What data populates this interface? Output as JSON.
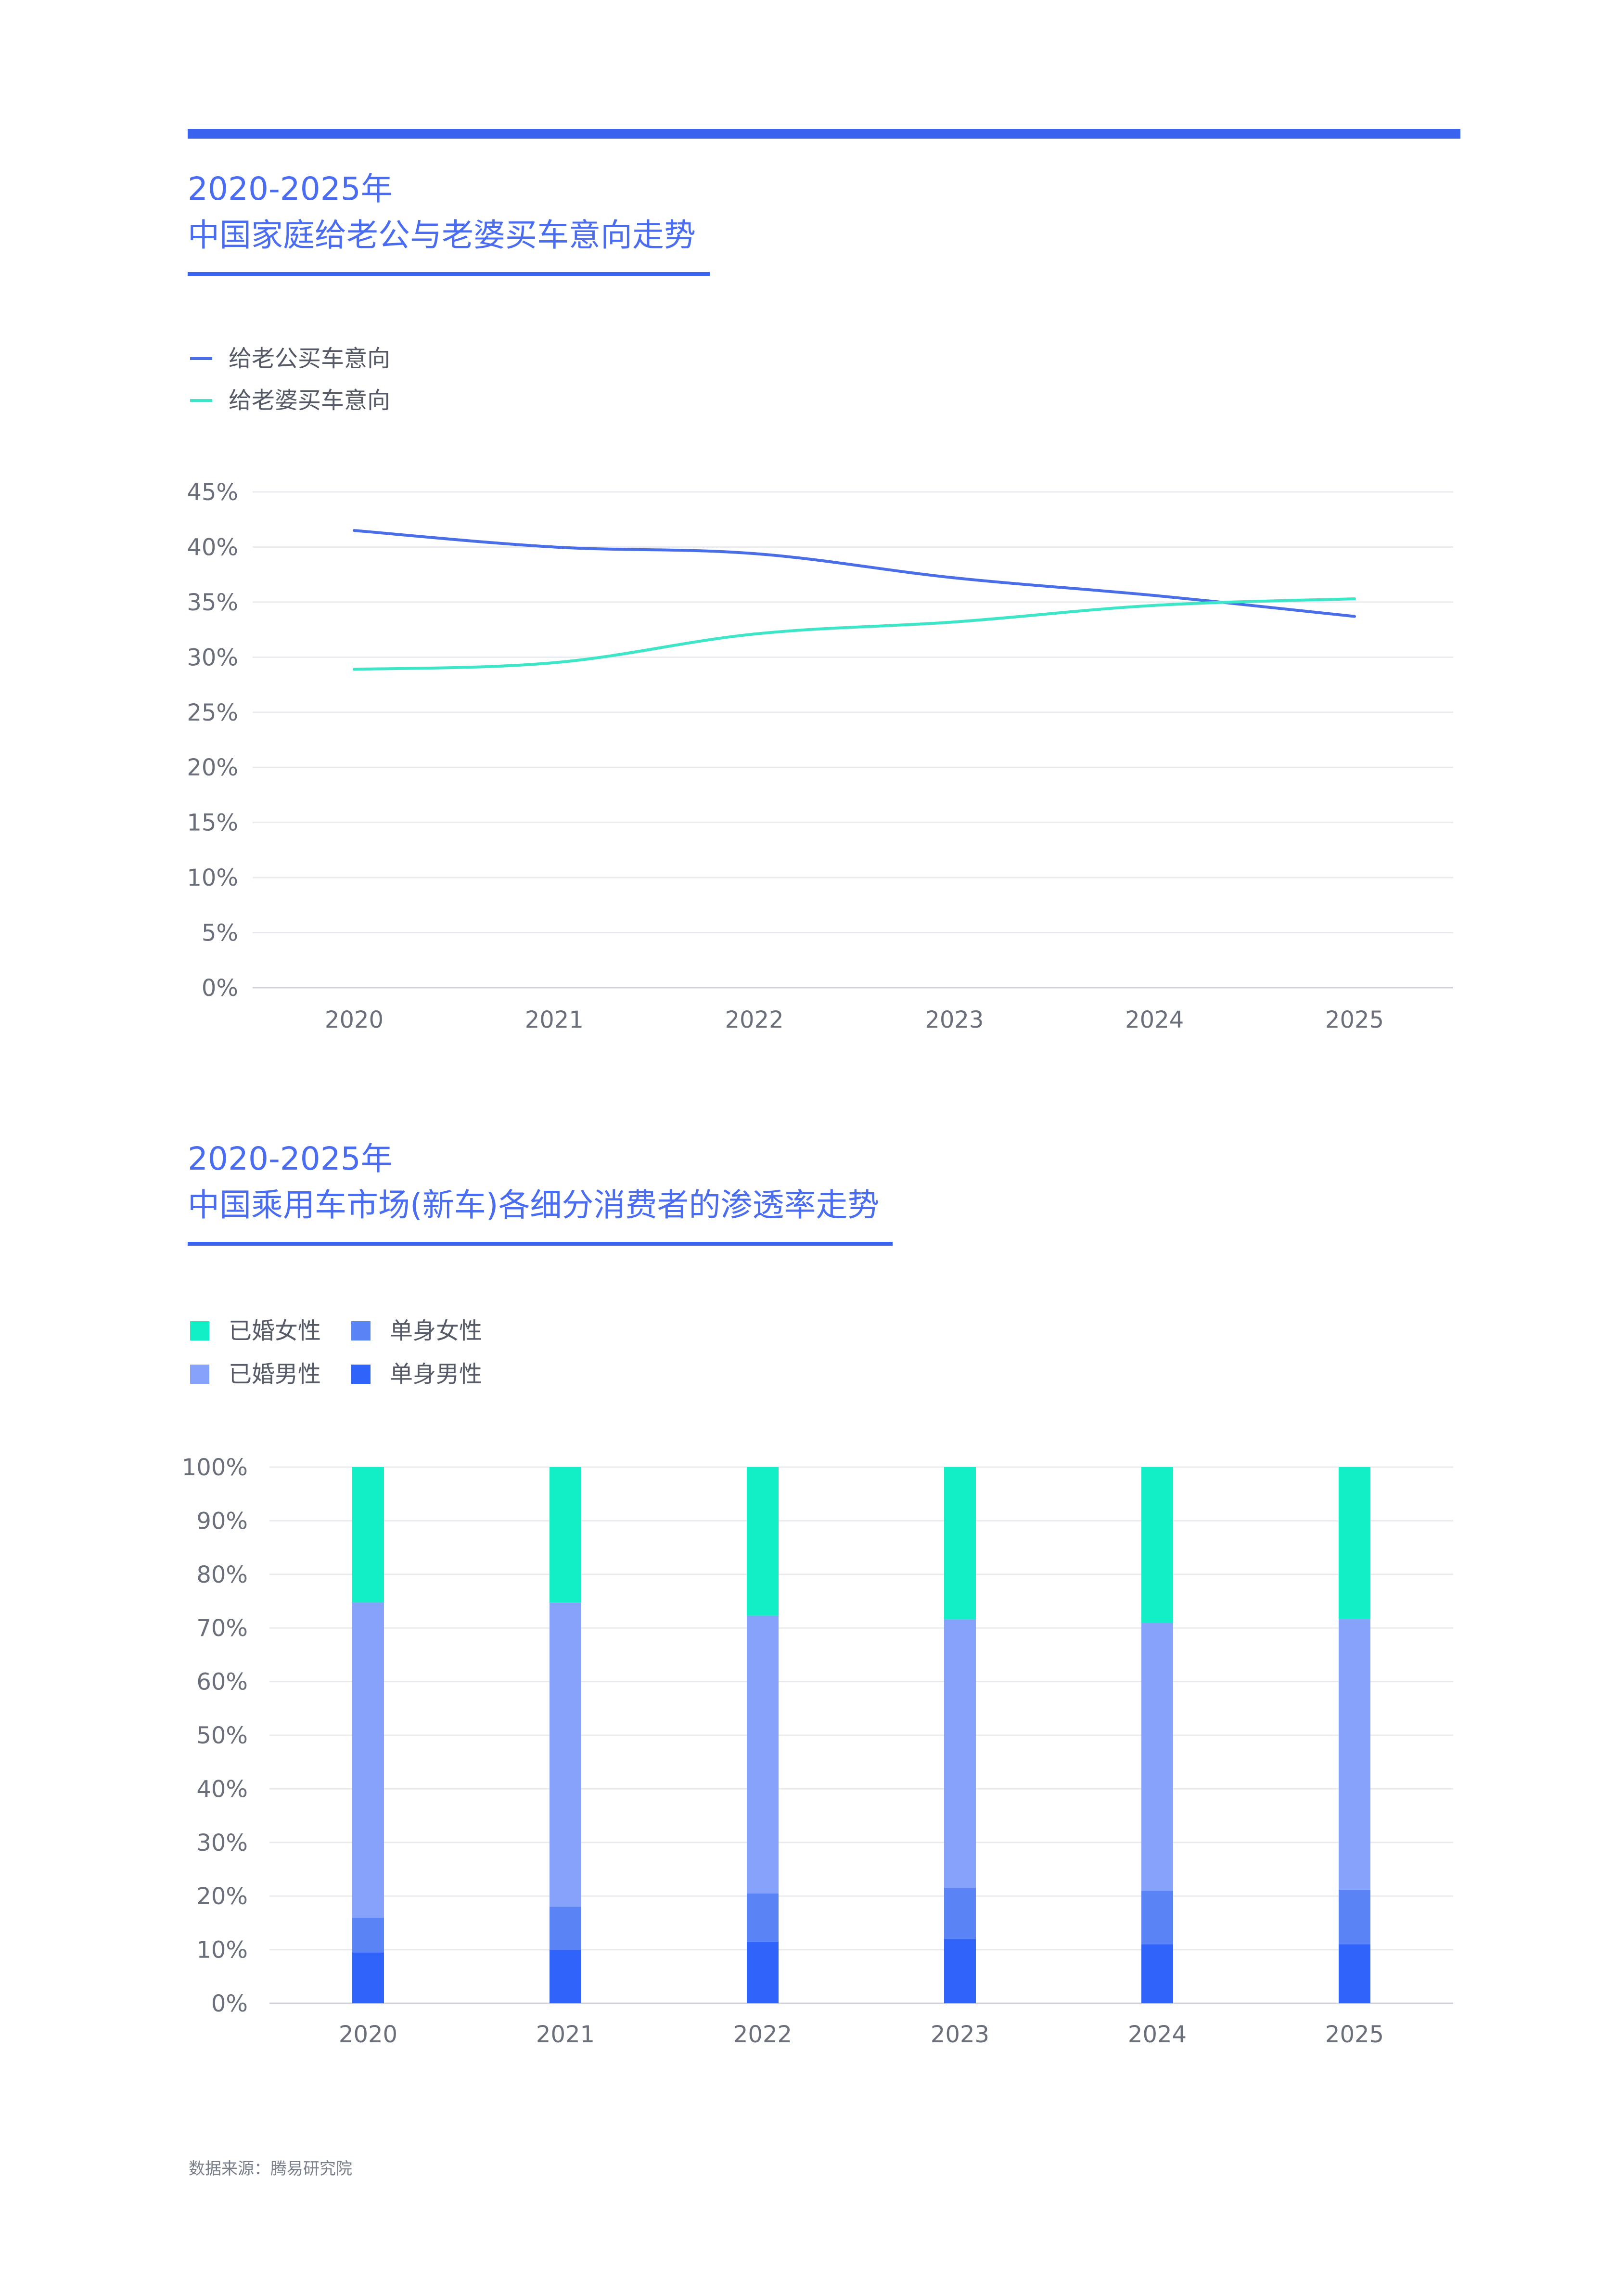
{
  "source_note": "数据来源：腾易研究院",
  "charts": [
    {
      "title_line1": "2020-2025年",
      "title_line2": "中国家庭给老公与老婆买车意向走势",
      "legend": [
        {
          "label": "给老公买车意向",
          "color": "#4a6ee8"
        },
        {
          "label": "给老婆买车意向",
          "color": "#3ee6c8"
        }
      ]
    },
    {
      "title_line1": "2020-2025年",
      "title_line2": "中国乘用车市场(新车)各细分消费者的渗透率走势",
      "legend": [
        {
          "label": "已婚女性",
          "color": "#12efc6"
        },
        {
          "label": "单身女性",
          "color": "#5a83f5"
        },
        {
          "label": "已婚男性",
          "color": "#86a2fb"
        },
        {
          "label": "单身男性",
          "color": "#2f63fa"
        }
      ]
    }
  ],
  "chart_data": [
    {
      "type": "line",
      "title": "2020-2025年 中国家庭给老公与老婆买车意向走势",
      "categories": [
        "2020",
        "2021",
        "2022",
        "2023",
        "2024",
        "2025"
      ],
      "series": [
        {
          "name": "给老公买车意向",
          "values": [
            41.5,
            40.0,
            39.4,
            37.2,
            35.6,
            33.7
          ],
          "color": "#4a6ee8"
        },
        {
          "name": "给老婆买车意向",
          "values": [
            28.9,
            29.5,
            32.1,
            33.2,
            34.7,
            35.3
          ],
          "color": "#3ee6c8"
        }
      ],
      "yticks": [
        "0%",
        "5%",
        "10%",
        "15%",
        "20%",
        "25%",
        "30%",
        "35%",
        "40%",
        "45%"
      ],
      "ylim": [
        0,
        45
      ],
      "grid": true,
      "legend_position": "top-left"
    },
    {
      "type": "bar",
      "stacked": true,
      "title": "2020-2025年 中国乘用车市场(新车)各细分消费者的渗透率走势",
      "categories": [
        "2020",
        "2021",
        "2022",
        "2023",
        "2024",
        "2025"
      ],
      "series": [
        {
          "name": "单身男性",
          "values": [
            9.5,
            10.0,
            11.5,
            12.0,
            11.0,
            11.0
          ],
          "color": "#2f63fa"
        },
        {
          "name": "单身女性",
          "values": [
            6.5,
            8.0,
            9.0,
            9.5,
            10.0,
            10.2
          ],
          "color": "#5a83f5"
        },
        {
          "name": "已婚男性",
          "values": [
            58.8,
            56.7,
            51.8,
            50.1,
            50.0,
            50.5
          ],
          "color": "#86a2fb"
        },
        {
          "name": "已婚女性",
          "values": [
            25.2,
            25.3,
            27.7,
            28.4,
            29.0,
            28.3
          ],
          "color": "#12efc6"
        }
      ],
      "yticks": [
        "0%",
        "10%",
        "20%",
        "30%",
        "40%",
        "50%",
        "60%",
        "70%",
        "80%",
        "90%",
        "100%"
      ],
      "ylim": [
        0,
        100
      ],
      "grid": true,
      "legend_position": "top-left"
    }
  ]
}
